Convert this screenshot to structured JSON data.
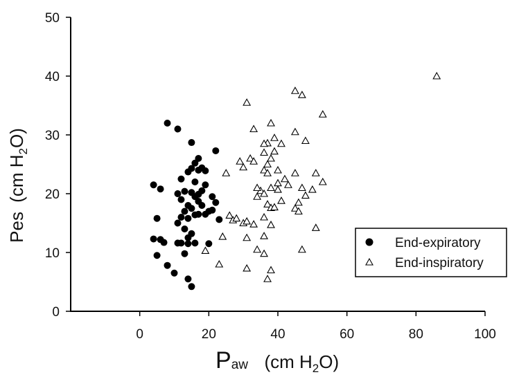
{
  "chart_data": {
    "type": "scatter",
    "title": "",
    "xlabel": {
      "main": "P",
      "sub": "aw",
      "unit_pre": "(cm H",
      "unit_sub": "2",
      "unit_post": "O)"
    },
    "ylabel": {
      "main": "Pes",
      "unit_pre": "(cm H",
      "unit_sub": "2",
      "unit_post": "O)"
    },
    "xlim": [
      -20,
      100
    ],
    "ylim": [
      0,
      50
    ],
    "xticks": [
      0,
      20,
      40,
      60,
      80,
      100
    ],
    "yticks": [
      0,
      10,
      20,
      30,
      40,
      50
    ],
    "grid": false,
    "legend_position": "lower-right",
    "series": [
      {
        "name": "End-expiratory",
        "marker": "filled-circle",
        "color": "#000000",
        "points": [
          [
            8,
            32
          ],
          [
            11,
            31
          ],
          [
            15,
            28.7
          ],
          [
            17,
            26
          ],
          [
            22,
            27.3
          ],
          [
            4,
            21.5
          ],
          [
            6,
            20.8
          ],
          [
            5,
            15.8
          ],
          [
            4,
            12.3
          ],
          [
            5,
            9.5
          ],
          [
            6,
            12.2
          ],
          [
            7,
            11.7
          ],
          [
            8,
            7.8
          ],
          [
            10,
            6.5
          ],
          [
            14,
            5.5
          ],
          [
            15,
            4.2
          ],
          [
            13,
            9.8
          ],
          [
            11,
            11.6
          ],
          [
            12,
            11.6
          ],
          [
            14,
            11.5
          ],
          [
            16,
            11.6
          ],
          [
            11,
            15
          ],
          [
            12,
            16
          ],
          [
            13,
            17
          ],
          [
            14,
            18
          ],
          [
            12,
            19
          ],
          [
            11,
            20
          ],
          [
            13,
            20.4
          ],
          [
            12,
            22.5
          ],
          [
            14,
            23.7
          ],
          [
            15,
            24.3
          ],
          [
            16,
            25.2
          ],
          [
            17,
            24
          ],
          [
            18,
            24.4
          ],
          [
            19,
            23.9
          ],
          [
            19,
            21.5
          ],
          [
            16,
            22
          ],
          [
            18,
            20.5
          ],
          [
            16,
            19.5
          ],
          [
            17,
            18.7
          ],
          [
            15,
            17.5
          ],
          [
            17,
            16.5
          ],
          [
            14,
            15.8
          ],
          [
            13,
            14
          ],
          [
            15,
            13.2
          ],
          [
            14,
            12.5
          ],
          [
            16,
            16.4
          ],
          [
            18,
            18
          ],
          [
            19,
            16.5
          ],
          [
            20,
            17
          ],
          [
            21,
            19.5
          ],
          [
            22,
            18.5
          ],
          [
            21,
            17.2
          ],
          [
            23,
            15.6
          ],
          [
            20,
            11.5
          ],
          [
            17,
            19.9
          ],
          [
            15,
            20.2
          ]
        ]
      },
      {
        "name": "End-inspiratory",
        "marker": "open-triangle",
        "color": "#000000",
        "points": [
          [
            86,
            40
          ],
          [
            45,
            37.5
          ],
          [
            47,
            36.8
          ],
          [
            31,
            35.5
          ],
          [
            53,
            33.5
          ],
          [
            38,
            32
          ],
          [
            33,
            31
          ],
          [
            45,
            30.5
          ],
          [
            39,
            29.5
          ],
          [
            48,
            29
          ],
          [
            37,
            28.6
          ],
          [
            36,
            28.5
          ],
          [
            41,
            28.5
          ],
          [
            29,
            25.5
          ],
          [
            30,
            24.5
          ],
          [
            32,
            26
          ],
          [
            33,
            25.5
          ],
          [
            36,
            27
          ],
          [
            38,
            26
          ],
          [
            37,
            25
          ],
          [
            39,
            27.2
          ],
          [
            36,
            24
          ],
          [
            37,
            23.5
          ],
          [
            40,
            24
          ],
          [
            45,
            23.5
          ],
          [
            51,
            23.5
          ],
          [
            42,
            22.5
          ],
          [
            53,
            22
          ],
          [
            38,
            21
          ],
          [
            35,
            20.5
          ],
          [
            34,
            21
          ],
          [
            36,
            20
          ],
          [
            40,
            20.7
          ],
          [
            43,
            21.5
          ],
          [
            47,
            21
          ],
          [
            50,
            20.7
          ],
          [
            48,
            19.7
          ],
          [
            41,
            18.8
          ],
          [
            46,
            18.5
          ],
          [
            37,
            18.2
          ],
          [
            38,
            17.6
          ],
          [
            39,
            17.7
          ],
          [
            45,
            17.5
          ],
          [
            46,
            17
          ],
          [
            25,
            23.5
          ],
          [
            26,
            16.3
          ],
          [
            27,
            15.5
          ],
          [
            28,
            15.8
          ],
          [
            30,
            15
          ],
          [
            31,
            15.3
          ],
          [
            33,
            14.8
          ],
          [
            36,
            16
          ],
          [
            38,
            14.7
          ],
          [
            24,
            12.7
          ],
          [
            31,
            12.5
          ],
          [
            36,
            12.8
          ],
          [
            19,
            10.3
          ],
          [
            34,
            10.5
          ],
          [
            36,
            9.8
          ],
          [
            47,
            10.5
          ],
          [
            51,
            14.2
          ],
          [
            23,
            8
          ],
          [
            31,
            7.3
          ],
          [
            38,
            7
          ],
          [
            37,
            5.5
          ],
          [
            34,
            19.5
          ],
          [
            40,
            21.8
          ]
        ]
      }
    ]
  }
}
